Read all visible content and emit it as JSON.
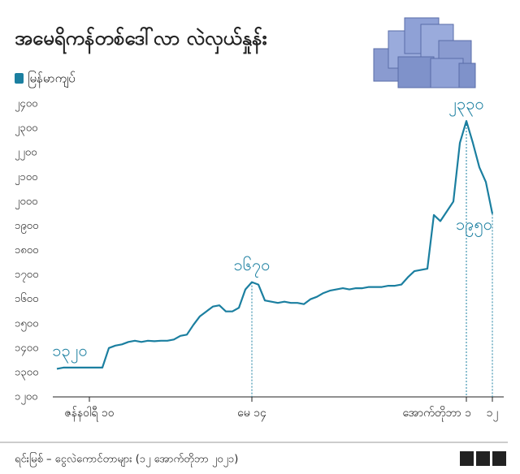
{
  "chart_data": {
    "type": "line",
    "title": "အမေရိကန်တစ်ဒေါ်လာ လဲလှယ်နှုန်း",
    "source": "ရင်းမြစ် – ငွေလဲကောင်တာများ (၁၂ အောက်တိုဘာ ၂၀၂၁)",
    "logo": "BBC",
    "categories": [
      null,
      null,
      null,
      null,
      null,
      "ဇန်နဝါရီ ၁၀",
      null,
      null,
      null,
      null,
      null,
      null,
      null,
      null,
      null,
      null,
      null,
      null,
      null,
      null,
      null,
      null,
      null,
      null,
      null,
      null,
      null,
      null,
      null,
      null,
      "မေ ၁၄",
      null,
      null,
      null,
      null,
      null,
      null,
      null,
      null,
      null,
      null,
      null,
      null,
      null,
      null,
      null,
      null,
      null,
      null,
      null,
      null,
      null,
      null,
      null,
      null,
      null,
      null,
      null,
      null,
      null,
      null,
      null,
      null,
      "အောက်တိုဘာ ၁",
      null,
      null,
      null,
      "၁၂"
    ],
    "series": [
      {
        "name": "မြန်မာကျပ်",
        "color": "#1b7fa0",
        "values": [
          1315,
          1320,
          1320,
          1320,
          1320,
          1320,
          1320,
          1320,
          1400,
          1410,
          1415,
          1425,
          1430,
          1425,
          1430,
          1428,
          1430,
          1430,
          1435,
          1450,
          1455,
          1495,
          1530,
          1550,
          1570,
          1575,
          1550,
          1550,
          1565,
          1640,
          1670,
          1660,
          1595,
          1590,
          1585,
          1590,
          1585,
          1585,
          1580,
          1600,
          1610,
          1625,
          1635,
          1640,
          1645,
          1640,
          1645,
          1645,
          1650,
          1650,
          1650,
          1655,
          1655,
          1660,
          1690,
          1715,
          1720,
          1725,
          1945,
          1920,
          1960,
          2000,
          2240,
          2330,
          2240,
          2140,
          2080,
          1950
        ],
        "value_labels": [
          null,
          null,
          "၁၃၂၀",
          null,
          null,
          null,
          null,
          null,
          null,
          null,
          null,
          null,
          null,
          null,
          null,
          null,
          null,
          null,
          null,
          null,
          null,
          null,
          null,
          null,
          null,
          null,
          null,
          null,
          null,
          null,
          "၁၆၇၀",
          null,
          null,
          null,
          null,
          null,
          null,
          null,
          null,
          null,
          null,
          null,
          null,
          null,
          null,
          null,
          null,
          null,
          null,
          null,
          null,
          null,
          null,
          null,
          null,
          null,
          null,
          null,
          null,
          null,
          null,
          null,
          null,
          "၂၃၃၀",
          null,
          null,
          null,
          "၁၉၅၀"
        ]
      }
    ],
    "ylim": [
      1200,
      2400
    ],
    "yticks": [
      {
        "value": 1200,
        "label": "၁၂၀၀"
      },
      {
        "value": 1300,
        "label": "၁၃၀၀"
      },
      {
        "value": 1400,
        "label": "၁၄၀၀"
      },
      {
        "value": 1500,
        "label": "၁၅၀၀"
      },
      {
        "value": 1600,
        "label": "၁၆၀၀"
      },
      {
        "value": 1700,
        "label": "၁၇၀၀"
      },
      {
        "value": 1800,
        "label": "၁၈၀၀"
      },
      {
        "value": 1900,
        "label": "၁၉၀၀"
      },
      {
        "value": 2000,
        "label": "၂၀၀၀"
      },
      {
        "value": 2100,
        "label": "၂၁၀၀"
      },
      {
        "value": 2200,
        "label": "၂၂၀၀"
      },
      {
        "value": 2300,
        "label": "၂၃၀၀"
      },
      {
        "value": 2400,
        "label": "၂၄၀၀"
      }
    ],
    "grid": false
  }
}
